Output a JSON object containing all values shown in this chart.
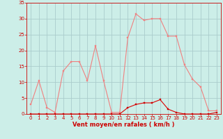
{
  "hours": [
    0,
    1,
    2,
    3,
    4,
    5,
    6,
    7,
    8,
    9,
    10,
    11,
    12,
    13,
    14,
    15,
    16,
    17,
    18,
    19,
    20,
    21,
    22,
    23
  ],
  "wind_gust": [
    3,
    10.5,
    2,
    0.5,
    13.5,
    16.5,
    16.5,
    10.5,
    21.5,
    10.5,
    0.5,
    0.5,
    24,
    31.5,
    29.5,
    30,
    30,
    24.5,
    24.5,
    15.5,
    11,
    8.5,
    1,
    1
  ],
  "wind_avg": [
    0,
    0,
    0,
    0,
    0,
    0,
    0,
    0,
    0,
    0,
    0,
    0,
    2,
    3,
    3.5,
    3.5,
    4.5,
    1.5,
    0.5,
    0,
    0,
    0,
    0,
    0.5
  ],
  "line_color_gust": "#f08080",
  "line_color_avg": "#dd0000",
  "marker_color_gust": "#f08080",
  "marker_color_avg": "#cc0000",
  "bg_color": "#cceee8",
  "grid_color": "#aacccc",
  "axis_color": "#cc0000",
  "tick_color": "#cc0000",
  "xlabel": "Vent moyen/en rafales ( km/h )",
  "xlabel_color": "#cc0000",
  "ylim": [
    0,
    35
  ],
  "xlim": [
    -0.5,
    23.5
  ],
  "yticks": [
    0,
    5,
    10,
    15,
    20,
    25,
    30,
    35
  ],
  "xticks": [
    0,
    1,
    2,
    3,
    4,
    5,
    6,
    7,
    8,
    9,
    10,
    11,
    12,
    13,
    14,
    15,
    16,
    17,
    18,
    19,
    20,
    21,
    22,
    23
  ]
}
